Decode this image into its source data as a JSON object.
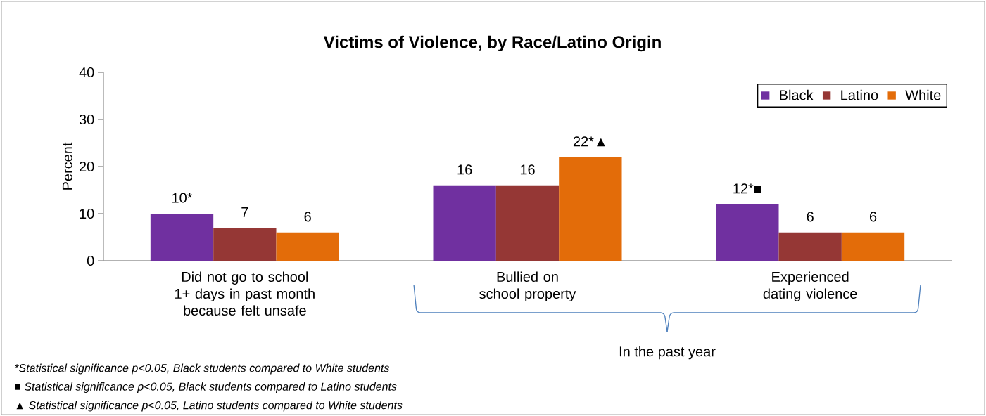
{
  "chart_data": {
    "type": "bar",
    "title": "Victims of Violence, by Race/Latino Origin",
    "ylabel": "Percent",
    "categories": [
      "Did not go to school 1+ days in past month because felt unsafe",
      "Bullied on school property",
      "Experienced dating violence"
    ],
    "series": [
      {
        "name": "Black",
        "color": "#7030a0",
        "values": [
          10,
          16,
          12
        ],
        "value_labels": [
          "10*",
          "16",
          "12*■"
        ]
      },
      {
        "name": "Latino",
        "color": "#953735",
        "values": [
          7,
          16,
          6
        ],
        "value_labels": [
          "7",
          "16",
          "6"
        ]
      },
      {
        "name": "White",
        "color": "#e36c09",
        "values": [
          6,
          22,
          6
        ],
        "value_labels": [
          "6",
          "22*▲",
          "6"
        ]
      }
    ],
    "ylim": [
      0,
      40
    ],
    "yticks": [
      0,
      10,
      20,
      30,
      40
    ],
    "legend": "top right",
    "annotations": [
      "In the past year",
      "*Statistical significance p<0.05, Black students compared to White students",
      "■ Statistical significance p<0.05, Black students compared to Latino students",
      "▲ Statistical significance p<0.05, Latino students compared to White students"
    ]
  }
}
